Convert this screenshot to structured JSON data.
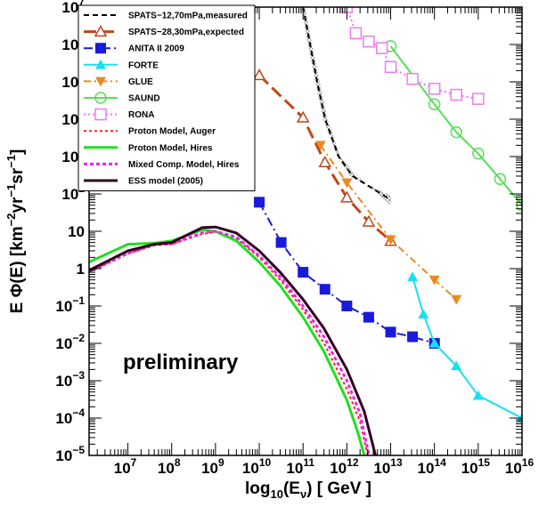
{
  "chart_data": {
    "type": "line",
    "title": "",
    "xlabel": {
      "base": "log",
      "sub": "10",
      "paren_open": "(E",
      "sub2": "ν",
      "paren_close": ") [ GeV ]"
    },
    "ylabel": {
      "pre": "E Φ(E) [km",
      "e1": "−2",
      "mid1": "yr",
      "e2": "−1",
      "mid2": "sr",
      "e3": "−1",
      "post": "]"
    },
    "x_scale": "log",
    "y_scale": "log",
    "xlim": [
      1300000.0,
      1e+16
    ],
    "ylim": [
      1e-05,
      10000000.0
    ],
    "x_ticks": [
      {
        "base": "10",
        "exp": "7",
        "value": 10000000.0
      },
      {
        "base": "10",
        "exp": "8",
        "value": 100000000.0
      },
      {
        "base": "10",
        "exp": "9",
        "value": 1000000000.0
      },
      {
        "base": "10",
        "exp": "10",
        "value": 10000000000.0
      },
      {
        "base": "10",
        "exp": "11",
        "value": 100000000000.0
      },
      {
        "base": "10",
        "exp": "12",
        "value": 1000000000000.0
      },
      {
        "base": "10",
        "exp": "13",
        "value": 10000000000000.0
      },
      {
        "base": "10",
        "exp": "14",
        "value": 100000000000000.0
      },
      {
        "base": "10",
        "exp": "15",
        "value": 1000000000000000.0
      },
      {
        "base": "10",
        "exp": "16",
        "value": 1e+16
      }
    ],
    "y_ticks": [
      {
        "base": "10",
        "exp": "−5",
        "value": 1e-05
      },
      {
        "base": "10",
        "exp": "−4",
        "value": 0.0001
      },
      {
        "base": "10",
        "exp": "−3",
        "value": 0.001
      },
      {
        "base": "10",
        "exp": "−2",
        "value": 0.01
      },
      {
        "base": "10",
        "exp": "−1",
        "value": 0.1
      },
      {
        "base": "1",
        "exp": "",
        "value": 1
      },
      {
        "base": "10",
        "exp": "",
        "value": 10
      },
      {
        "base": "10",
        "exp": "2",
        "value": 100.0
      },
      {
        "base": "10",
        "exp": "3",
        "value": 1000.0
      },
      {
        "base": "10",
        "exp": "4",
        "value": 10000.0
      },
      {
        "base": "10",
        "exp": "5",
        "value": 100000.0
      },
      {
        "base": "10",
        "exp": "6",
        "value": 1000000.0
      },
      {
        "base": "10",
        "exp": "7",
        "value": 10000000.0
      }
    ],
    "annotation": "preliminary",
    "legend_position": "top-left",
    "band": {
      "color": "#9a9a9a",
      "upper": [
        [
          90000000000.0,
          10000000.0
        ],
        [
          130000000000.0,
          1000000.0
        ],
        [
          190000000000.0,
          100000.0
        ],
        [
          290000000000.0,
          10000.0
        ],
        [
          600000000000.0,
          1000.0
        ],
        [
          1200000000000.0,
          300.0
        ],
        [
          10000000000000.0,
          90.0
        ]
      ],
      "lower": [
        [
          110000000000.0,
          10000000.0
        ],
        [
          160000000000.0,
          1000000.0
        ],
        [
          240000000000.0,
          100000.0
        ],
        [
          360000000000.0,
          10000.0
        ],
        [
          700000000000.0,
          1000.0
        ],
        [
          1500000000000.0,
          350.0
        ],
        [
          10000000000000.0,
          50.0
        ]
      ]
    },
    "series": [
      {
        "name": "SPATS−12,70mPa,measured",
        "color": "#000000",
        "dash": "6,4",
        "width": 2,
        "marker": "none",
        "points": [
          [
            100000000000.0,
            10000000.0
          ],
          [
            145000000000.0,
            1000000.0
          ],
          [
            210000000000.0,
            100000.0
          ],
          [
            320000000000.0,
            10000.0
          ],
          [
            650000000000.0,
            1000.0
          ],
          [
            1350000000000.0,
            300.0
          ],
          [
            10000000000000.0,
            70.0
          ]
        ]
      },
      {
        "name": "SPATS−28,30mPa,expected",
        "color": "#c0461a",
        "dash": "14,6",
        "width": 3,
        "marker": "triangle-open",
        "points": [
          [
            10000000000.0,
            150000.0
          ],
          [
            100000000000.0,
            11000.0
          ],
          [
            316000000000.0,
            700.0
          ],
          [
            1000000000000.0,
            80.0
          ],
          [
            3160000000000.0,
            18.0
          ],
          [
            10000000000000.0,
            5.5
          ]
        ]
      },
      {
        "name": "ANITA II 2009",
        "color": "#1a1adb",
        "dash": "10,4,2,4",
        "width": 2,
        "marker": "square",
        "points": [
          [
            10000000000.0,
            60.0
          ],
          [
            31600000000.0,
            5
          ],
          [
            100000000000.0,
            0.8
          ],
          [
            316000000000.0,
            0.28
          ],
          [
            1000000000000.0,
            0.1
          ],
          [
            3160000000000.0,
            0.05
          ],
          [
            10000000000000.0,
            0.02
          ],
          [
            31600000000000.0,
            0.015
          ],
          [
            100000000000000.0,
            0.01
          ]
        ]
      },
      {
        "name": "FORTE",
        "color": "#19e0f0",
        "dash": "",
        "width": 2,
        "marker": "triangle",
        "points": [
          [
            31600000000000.0,
            0.6
          ],
          [
            56000000000000.0,
            0.06
          ],
          [
            100000000000000.0,
            0.01
          ],
          [
            316000000000000.0,
            0.0025
          ],
          [
            1000000000000000.0,
            0.0004
          ],
          [
            1e+16,
            0.0001
          ]
        ]
      },
      {
        "name": "GLUE",
        "color": "#e98a20",
        "dash": "8,4,2,4",
        "width": 2,
        "marker": "triangle-down",
        "points": [
          [
            250000000000.0,
            2000.0
          ],
          [
            1000000000000.0,
            200.0
          ],
          [
            10000000000000.0,
            6
          ],
          [
            100000000000000.0,
            0.5
          ],
          [
            316000000000000.0,
            0.15
          ]
        ]
      },
      {
        "name": "SAUND",
        "color": "#55e055",
        "dash": "",
        "width": 2,
        "marker": "circle-open",
        "points": [
          [
            10000000000000.0,
            900000.0
          ],
          [
            100000000000000.0,
            25000.0
          ],
          [
            316000000000000.0,
            4500.0
          ],
          [
            1000000000000000.0,
            1200.0
          ],
          [
            3160000000000000.0,
            250.0
          ],
          [
            1e+16,
            50.0
          ]
        ]
      },
      {
        "name": "RONA",
        "color": "#ef7aef",
        "dash": "2,3",
        "width": 2,
        "marker": "square-open",
        "points": [
          [
            1000000000000.0,
            10000000.0
          ],
          [
            1600000000000.0,
            2000000.0
          ],
          [
            3160000000000.0,
            1200000.0
          ],
          [
            6300000000000.0,
            800000.0
          ],
          [
            10000000000000.0,
            250000.0
          ],
          [
            31600000000000.0,
            120000.0
          ],
          [
            100000000000000.0,
            65000.0
          ],
          [
            316000000000000.0,
            45000.0
          ],
          [
            1000000000000000.0,
            35000.0
          ]
        ]
      },
      {
        "name": "Proton Model, Auger",
        "color": "#ff2020",
        "dash": "3,3",
        "width": 2,
        "marker": "none",
        "points": [
          [
            1300000.0,
            0.8
          ],
          [
            10000000.0,
            2.5
          ],
          [
            40000000.0,
            4.2
          ],
          [
            100000000.0,
            4.5
          ],
          [
            500000000.0,
            8.5
          ],
          [
            1000000000.0,
            9.5
          ],
          [
            3000000000.0,
            6.5
          ],
          [
            10000000000.0,
            2
          ],
          [
            30000000000.0,
            0.5
          ],
          [
            100000000000.0,
            0.08
          ],
          [
            300000000000.0,
            0.01
          ],
          [
            1000000000000.0,
            0.0006
          ],
          [
            2000000000000.0,
            8e-05
          ],
          [
            3000000000000.0,
            1e-05
          ]
        ]
      },
      {
        "name": "Proton Model, Hires",
        "color": "#22dd22",
        "dash": "",
        "width": 3,
        "marker": "none",
        "points": [
          [
            1300000.0,
            1.5
          ],
          [
            10000000.0,
            4.5
          ],
          [
            40000000.0,
            4.8
          ],
          [
            100000000.0,
            5.5
          ],
          [
            500000000.0,
            11
          ],
          [
            1000000000.0,
            10
          ],
          [
            3000000000.0,
            5.5
          ],
          [
            10000000000.0,
            1.5
          ],
          [
            30000000000.0,
            0.35
          ],
          [
            100000000000.0,
            0.05
          ],
          [
            300000000000.0,
            0.006
          ],
          [
            1000000000000.0,
            0.0003
          ],
          [
            1800000000000.0,
            4e-05
          ],
          [
            2500000000000.0,
            1e-05
          ]
        ]
      },
      {
        "name": "Mixed Comp. Model, Hires",
        "color": "#f020f0",
        "dash": "4,3",
        "width": 3,
        "marker": "none",
        "points": [
          [
            1300000.0,
            0.85
          ],
          [
            10000000.0,
            2.6
          ],
          [
            40000000.0,
            4.3
          ],
          [
            100000000.0,
            4.6
          ],
          [
            500000000.0,
            9
          ],
          [
            1000000000.0,
            10
          ],
          [
            3000000000.0,
            7
          ],
          [
            10000000000.0,
            2.2
          ],
          [
            30000000000.0,
            0.6
          ],
          [
            100000000000.0,
            0.1
          ],
          [
            300000000000.0,
            0.015
          ],
          [
            1000000000000.0,
            0.001
          ],
          [
            2000000000000.0,
            0.00013
          ],
          [
            3200000000000.0,
            1e-05
          ]
        ]
      },
      {
        "name": "ESS model (2005)",
        "color": "#330022",
        "dash": "",
        "width": 3,
        "marker": "none",
        "points": [
          [
            1300000.0,
            0.9
          ],
          [
            10000000.0,
            3
          ],
          [
            40000000.0,
            4.5
          ],
          [
            100000000.0,
            5
          ],
          [
            500000000.0,
            12.5
          ],
          [
            1000000000.0,
            13
          ],
          [
            3000000000.0,
            9
          ],
          [
            10000000000.0,
            3
          ],
          [
            30000000000.0,
            0.8
          ],
          [
            100000000000.0,
            0.15
          ],
          [
            300000000000.0,
            0.025
          ],
          [
            1000000000000.0,
            0.002
          ],
          [
            2500000000000.0,
            0.00015
          ],
          [
            4500000000000.0,
            1e-05
          ]
        ]
      }
    ]
  }
}
